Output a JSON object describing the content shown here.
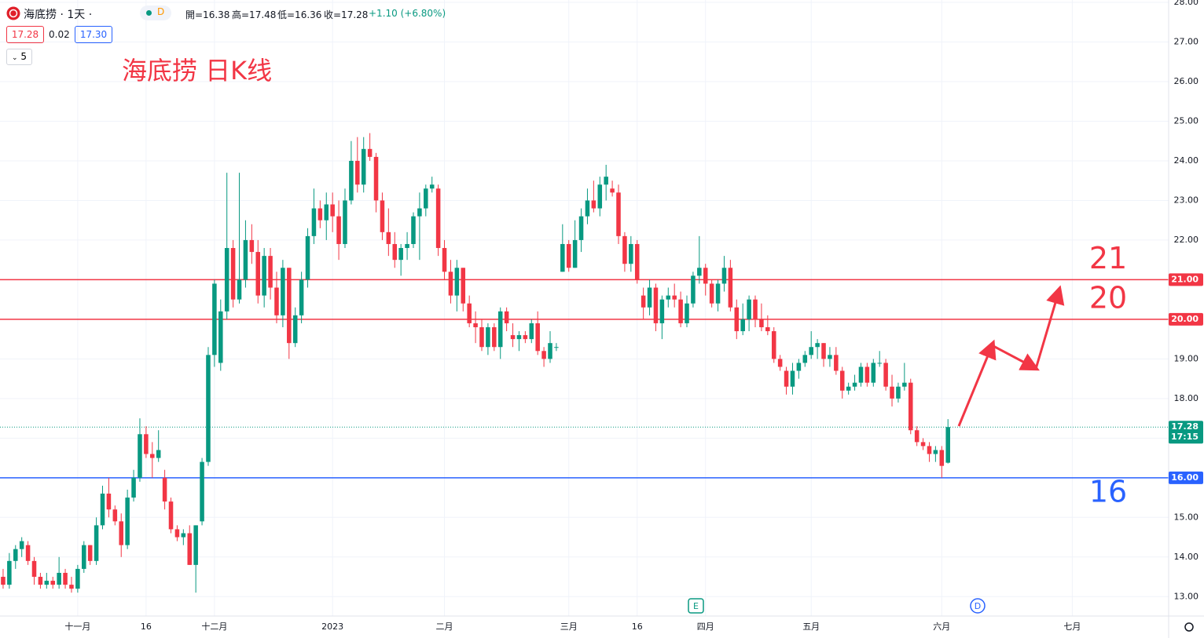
{
  "header": {
    "symbol": "海底捞 · 1天 ·",
    "badge": "D",
    "ohlc": [
      "開=16.38",
      "高=17.48",
      "低=16.36",
      "收=17.28"
    ],
    "change": "+1.10 (+6.80%)",
    "bid": "17.28",
    "spread": "0.02",
    "ask": "17.30",
    "indicator": "5"
  },
  "chart_data": {
    "type": "candlestick",
    "title": "海底捞 日K线",
    "up_color": "#089981",
    "down_color": "#f23645",
    "open": [
      13.5,
      13.3,
      13.9,
      14.2,
      14.3,
      13.9,
      13.5,
      13.3,
      13.4,
      13.3,
      13.6,
      13.3,
      13.2,
      13.7,
      14.3,
      13.9,
      14.8,
      15.6,
      15.2,
      14.9,
      14.3,
      15.5,
      16.0,
      17.1,
      16.6,
      16.5,
      16.0,
      15.4,
      14.7,
      14.5,
      14.6,
      13.8,
      14.9,
      16.4,
      19.1,
      18.9,
      20.2,
      21.8,
      20.5,
      21.0,
      22.0,
      21.7,
      20.6,
      21.6,
      20.8,
      20.1,
      21.3,
      19.4,
      20.1,
      21.0,
      22.1,
      22.8,
      22.5,
      22.9,
      22.6,
      21.9,
      23.0,
      24.0,
      23.4,
      24.3,
      24.1,
      23.0,
      22.2,
      21.9,
      21.5,
      21.8,
      21.9,
      22.6,
      22.8,
      23.3,
      23.3,
      21.8,
      21.2,
      20.6,
      21.3,
      20.4,
      19.9,
      19.8,
      19.3,
      19.8,
      19.3,
      20.2,
      19.6,
      19.5,
      19.6,
      19.5,
      19.9,
      19.2,
      19.0,
      19.3,
      21.2,
      21.9,
      21.3,
      22.0,
      22.6,
      23.0,
      22.8,
      23.4,
      23.3,
      23.2,
      22.1,
      21.4,
      21.9,
      20.6,
      20.3,
      20.8,
      19.9,
      20.5,
      20.6,
      20.5,
      19.9,
      20.4,
      21.1,
      21.3,
      20.9,
      20.4,
      20.9,
      21.3,
      20.3,
      19.7,
      20.0,
      20.5,
      20.0,
      19.8,
      19.7,
      19.0,
      18.7,
      18.3,
      18.7,
      18.9,
      19.1,
      19.3,
      19.4,
      19.0,
      19.1,
      18.7,
      18.2,
      18.3,
      18.4,
      18.8,
      18.4,
      18.9,
      18.9,
      18.3,
      18.0,
      18.3,
      18.4,
      17.2,
      16.9,
      16.8,
      16.6,
      16.7,
      16.38
    ],
    "high": [
      13.7,
      14.1,
      14.3,
      14.5,
      14.4,
      14.0,
      13.6,
      13.6,
      13.5,
      14.0,
      13.7,
      13.5,
      13.8,
      14.4,
      14.3,
      15.0,
      15.8,
      16.0,
      15.3,
      15.1,
      15.7,
      16.2,
      17.5,
      17.3,
      16.9,
      17.2,
      16.2,
      15.5,
      14.8,
      14.7,
      14.8,
      14.8,
      16.5,
      19.3,
      21.0,
      20.5,
      23.7,
      22.0,
      23.7,
      22.5,
      22.4,
      22.0,
      21.8,
      21.8,
      21.2,
      21.5,
      21.3,
      20.3,
      21.2,
      22.3,
      23.3,
      23.0,
      23.2,
      23.2,
      23.0,
      23.3,
      24.5,
      24.6,
      24.6,
      24.7,
      24.2,
      23.2,
      22.8,
      22.2,
      21.9,
      22.2,
      22.7,
      23.2,
      23.4,
      23.6,
      23.4,
      22.0,
      21.5,
      21.5,
      21.3,
      20.6,
      20.2,
      20.0,
      19.9,
      19.9,
      20.3,
      20.3,
      19.9,
      19.7,
      19.7,
      20.0,
      20.2,
      19.3,
      19.7,
      19.4,
      22.4,
      22.0,
      22.5,
      22.8,
      23.3,
      23.5,
      23.6,
      23.9,
      23.5,
      23.4,
      22.2,
      22.1,
      22.0,
      20.8,
      21.0,
      20.9,
      20.6,
      20.8,
      20.9,
      20.7,
      20.6,
      21.2,
      22.1,
      21.4,
      21.0,
      21.0,
      21.6,
      21.5,
      20.5,
      20.4,
      20.6,
      20.6,
      20.4,
      20.1,
      19.8,
      19.1,
      18.8,
      18.9,
      19.0,
      19.2,
      19.7,
      19.5,
      19.4,
      19.3,
      19.3,
      18.8,
      18.4,
      18.6,
      18.9,
      18.9,
      19.0,
      19.2,
      19.0,
      18.6,
      18.4,
      18.9,
      18.5,
      17.3,
      17.0,
      16.9,
      16.8,
      16.8,
      17.48
    ],
    "low": [
      13.2,
      13.2,
      13.7,
      14.0,
      13.8,
      13.3,
      13.2,
      13.2,
      13.2,
      13.2,
      13.2,
      13.1,
      13.1,
      13.6,
      13.8,
      13.8,
      14.7,
      15.0,
      14.8,
      14.0,
      14.2,
      15.4,
      15.9,
      16.5,
      16.0,
      16.4,
      15.2,
      14.6,
      14.4,
      14.3,
      13.8,
      13.1,
      14.8,
      16.3,
      18.8,
      18.7,
      20.0,
      20.3,
      20.4,
      20.8,
      21.4,
      20.4,
      20.3,
      20.5,
      19.9,
      19.8,
      19.0,
      19.3,
      19.9,
      20.8,
      21.9,
      22.3,
      22.0,
      22.2,
      21.5,
      21.8,
      22.9,
      23.2,
      23.2,
      24.0,
      22.7,
      22.0,
      21.6,
      21.3,
      21.1,
      21.5,
      21.8,
      21.5,
      22.6,
      23.2,
      21.6,
      21.0,
      20.4,
      20.2,
      20.2,
      19.8,
      19.4,
      19.2,
      19.1,
      19.2,
      19.0,
      19.7,
      19.3,
      19.2,
      19.4,
      19.4,
      19.1,
      18.8,
      18.9,
      19.2,
      21.2,
      21.2,
      21.3,
      21.7,
      22.4,
      22.7,
      22.6,
      23.0,
      23.1,
      21.9,
      21.2,
      21.2,
      20.9,
      20.0,
      20.1,
      19.7,
      19.5,
      20.3,
      20.3,
      19.8,
      19.8,
      20.3,
      20.9,
      20.6,
      20.3,
      20.2,
      20.7,
      20.2,
      19.5,
      19.6,
      19.7,
      19.8,
      19.7,
      19.6,
      18.9,
      18.7,
      18.1,
      18.1,
      18.5,
      18.8,
      19.0,
      19.0,
      18.8,
      18.8,
      18.6,
      18.0,
      18.1,
      18.2,
      18.3,
      18.3,
      18.3,
      18.8,
      18.2,
      17.8,
      17.9,
      18.2,
      17.1,
      16.8,
      16.7,
      16.4,
      16.4,
      16.0,
      16.36
    ],
    "close": [
      13.3,
      13.9,
      14.2,
      14.4,
      13.9,
      13.5,
      13.3,
      13.4,
      13.3,
      13.6,
      13.3,
      13.2,
      13.7,
      14.3,
      13.9,
      14.8,
      15.6,
      15.2,
      14.9,
      14.3,
      15.5,
      16.0,
      17.1,
      16.6,
      16.5,
      16.7,
      15.4,
      14.7,
      14.5,
      14.6,
      13.8,
      14.8,
      16.4,
      19.1,
      20.9,
      20.2,
      21.8,
      20.5,
      21.0,
      22.0,
      21.7,
      20.6,
      21.6,
      20.8,
      20.1,
      21.3,
      19.4,
      20.1,
      21.0,
      22.1,
      22.8,
      22.5,
      22.9,
      22.6,
      21.9,
      23.0,
      24.0,
      23.4,
      24.3,
      24.1,
      23.0,
      22.2,
      21.9,
      21.5,
      21.8,
      21.9,
      22.6,
      22.8,
      23.3,
      23.4,
      21.8,
      21.2,
      20.6,
      21.3,
      20.4,
      19.9,
      19.8,
      19.3,
      19.8,
      19.3,
      20.2,
      19.9,
      19.5,
      19.6,
      19.5,
      19.9,
      19.2,
      19.0,
      19.4,
      19.3,
      21.9,
      21.3,
      22.0,
      22.6,
      23.0,
      22.8,
      23.4,
      23.6,
      23.2,
      22.1,
      21.4,
      21.9,
      21.0,
      20.3,
      20.8,
      19.9,
      20.5,
      20.6,
      20.5,
      19.9,
      20.4,
      21.1,
      21.3,
      20.9,
      20.4,
      20.9,
      21.3,
      20.3,
      19.7,
      20.0,
      20.5,
      20.0,
      19.8,
      19.7,
      19.0,
      18.8,
      18.3,
      18.7,
      18.9,
      19.1,
      19.3,
      19.4,
      19.0,
      19.1,
      18.7,
      18.2,
      18.3,
      18.4,
      18.8,
      18.4,
      18.9,
      18.9,
      18.3,
      18.0,
      18.3,
      18.4,
      17.2,
      16.9,
      16.8,
      16.6,
      16.7,
      16.3,
      17.28
    ],
    "xlim": [
      -0.5,
      187.5
    ],
    "xticks": [
      {
        "value": 12,
        "label": "十一月"
      },
      {
        "value": 23,
        "label": "16"
      },
      {
        "value": 34,
        "label": "十二月"
      },
      {
        "value": 53,
        "label": "2023"
      },
      {
        "value": 71,
        "label": "二月"
      },
      {
        "value": 91,
        "label": "三月"
      },
      {
        "value": 102,
        "label": "16"
      },
      {
        "value": 113,
        "label": "四月"
      },
      {
        "value": 130,
        "label": "五月"
      },
      {
        "value": 151,
        "label": "六月"
      },
      {
        "value": 172,
        "label": "七月"
      }
    ],
    "ylim": [
      12.51,
      28.06
    ],
    "yticks": [
      {
        "value": 13,
        "label": "13.00"
      },
      {
        "value": 14,
        "label": "14.00"
      },
      {
        "value": 15,
        "label": "15.00"
      },
      {
        "value": 16,
        "label": "16.00"
      },
      {
        "value": 17,
        "label": "17.00"
      },
      {
        "value": 18,
        "label": "18.00"
      },
      {
        "value": 19,
        "label": "19.00"
      },
      {
        "value": 20,
        "label": "20.00"
      },
      {
        "value": 21,
        "label": "21.00"
      },
      {
        "value": 22,
        "label": "22.00"
      },
      {
        "value": 23,
        "label": "23.00"
      },
      {
        "value": 24,
        "label": "24.00"
      },
      {
        "value": 25,
        "label": "25.00"
      },
      {
        "value": 26,
        "label": "26.00"
      },
      {
        "value": 27,
        "label": "27.00"
      },
      {
        "value": 28,
        "label": "28.00"
      }
    ],
    "grid": true,
    "hlines": [
      {
        "value": 21,
        "label": "21.00",
        "color": "#f23645"
      },
      {
        "value": 20,
        "label": "20.00",
        "color": "#f23645"
      },
      {
        "value": 16,
        "label": "16.00",
        "color": "#2962ff"
      }
    ],
    "last_price": {
      "value": 17.28,
      "label": "17.28",
      "time": "17:15",
      "color": "#089981"
    },
    "events": [
      "E",
      "D"
    ]
  }
}
